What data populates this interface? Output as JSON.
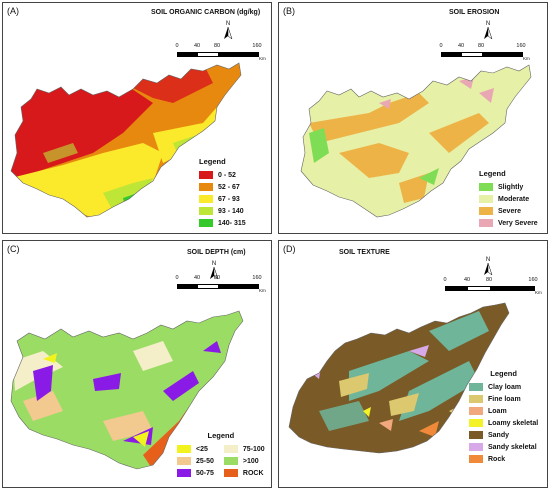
{
  "panels": {
    "a": {
      "label": "(A)",
      "title": "SOIL ORGANIC CARBON (dg/kg)",
      "scale_km": "Km",
      "scale_ticks": [
        "0",
        "40",
        "80",
        "160"
      ],
      "legend": {
        "title": "Legend",
        "items": [
          {
            "label": "0 - 52",
            "color": "#d7191c"
          },
          {
            "label": "52 - 67",
            "color": "#e8890f"
          },
          {
            "label": "67 - 93",
            "color": "#fbe92b"
          },
          {
            "label": "93 - 140",
            "color": "#bde636"
          },
          {
            "label": "140- 315",
            "color": "#35c92c"
          }
        ]
      }
    },
    "b": {
      "label": "(B)",
      "title": "SOIL EROSION",
      "scale_km": "Km",
      "scale_ticks": [
        "0",
        "40",
        "80",
        "160"
      ],
      "legend": {
        "title": "Legend",
        "items": [
          {
            "label": "Slightly",
            "color": "#7fdd55"
          },
          {
            "label": "Moderate",
            "color": "#e6f0a6"
          },
          {
            "label": "Severe",
            "color": "#eeb347"
          },
          {
            "label": "Very Severe",
            "color": "#e9a7b4"
          }
        ]
      }
    },
    "c": {
      "label": "(C)",
      "title": "SOIL DEPTH (cm)",
      "scale_km": "Km",
      "scale_ticks": [
        "0",
        "40",
        "80",
        "160"
      ],
      "legend": {
        "title": "Legend",
        "items": [
          {
            "label": "<25",
            "color": "#f2f21e"
          },
          {
            "label": "75-100",
            "color": "#f4efc8"
          },
          {
            "label": "25-50",
            "color": "#f2c98f"
          },
          {
            "label": ">100",
            "color": "#9bdc64"
          },
          {
            "label": "50-75",
            "color": "#8a1be6"
          },
          {
            "label": "ROCK",
            "color": "#e6601c"
          }
        ]
      }
    },
    "d": {
      "label": "(D)",
      "title": "SOIL TEXTURE",
      "scale_km": "Km",
      "scale_ticks": [
        "0",
        "40",
        "80",
        "160"
      ],
      "legend": {
        "title": "Legend",
        "items": [
          {
            "label": "Clay loam",
            "color": "#6fb59a"
          },
          {
            "label": "Fine loam",
            "color": "#dcc86e"
          },
          {
            "label": "Loam",
            "color": "#f0a87c"
          },
          {
            "label": "Loamy skeletal",
            "color": "#f2f226"
          },
          {
            "label": "Sandy",
            "color": "#7a5a26"
          },
          {
            "label": "Sandy skeletal",
            "color": "#d7a9e8"
          },
          {
            "label": "Rock",
            "color": "#f08a3a"
          }
        ]
      }
    }
  },
  "north_label": "N"
}
